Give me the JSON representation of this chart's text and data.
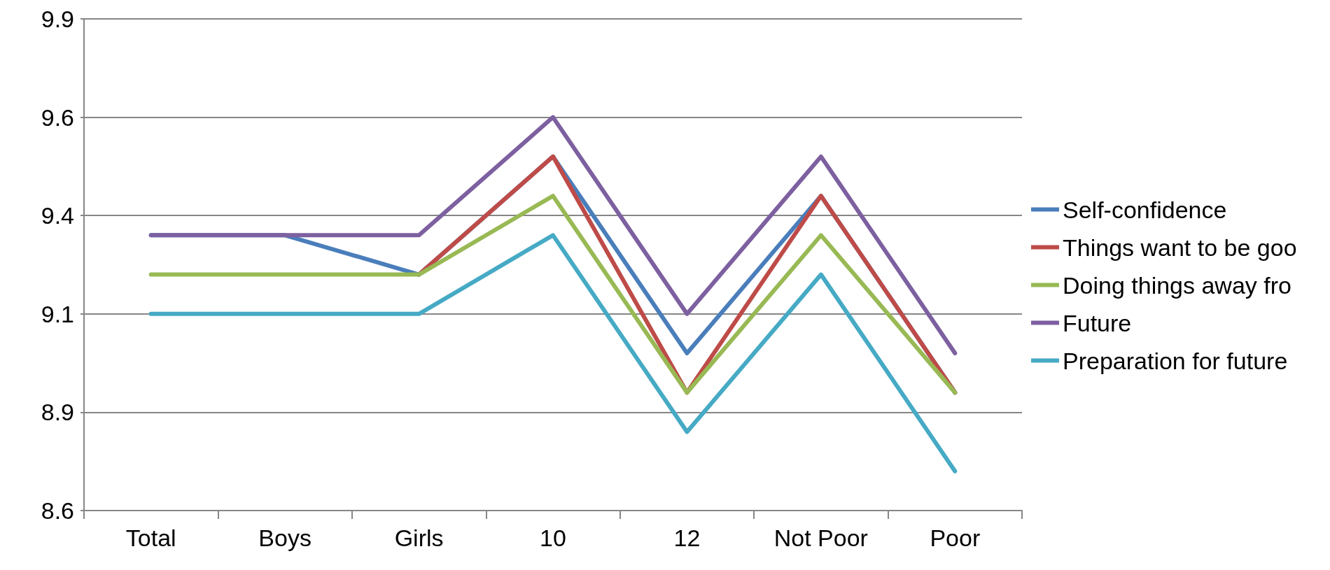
{
  "chart_data": {
    "type": "line",
    "categories": [
      "Total",
      "Boys",
      "Girls",
      "10",
      "12",
      "Not Poor",
      "Poor"
    ],
    "series": [
      {
        "name": "Self-confidence",
        "color": "#4a7ebb",
        "values": [
          9.3,
          9.3,
          9.2,
          9.5,
          9.0,
          9.4,
          8.9
        ]
      },
      {
        "name": "Things want to be goo",
        "color": "#be4b48",
        "values": [
          null,
          null,
          9.2,
          9.5,
          8.9,
          9.4,
          8.9
        ]
      },
      {
        "name": "Doing things away fro",
        "color": "#98b954",
        "values": [
          9.2,
          9.2,
          9.2,
          9.4,
          8.9,
          9.3,
          8.9
        ]
      },
      {
        "name": "Future",
        "color": "#7d60a0",
        "values": [
          9.3,
          9.3,
          9.3,
          9.6,
          9.1,
          9.5,
          9.0
        ]
      },
      {
        "name": "Preparation for future",
        "color": "#46aac5",
        "values": [
          9.1,
          9.1,
          9.1,
          9.3,
          8.8,
          9.2,
          8.7
        ]
      }
    ],
    "ylim": [
      8.6,
      9.85
    ],
    "yticks": [
      {
        "value": 8.6,
        "label": "8.6"
      },
      {
        "value": 8.85,
        "label": "8.9"
      },
      {
        "value": 9.1,
        "label": "9.1"
      },
      {
        "value": 9.35,
        "label": "9.4"
      },
      {
        "value": 9.6,
        "label": "9.6"
      },
      {
        "value": 9.85,
        "label": "9.9"
      }
    ],
    "grid": "y",
    "legend": "right",
    "marker": "none",
    "line_style": "solid"
  }
}
